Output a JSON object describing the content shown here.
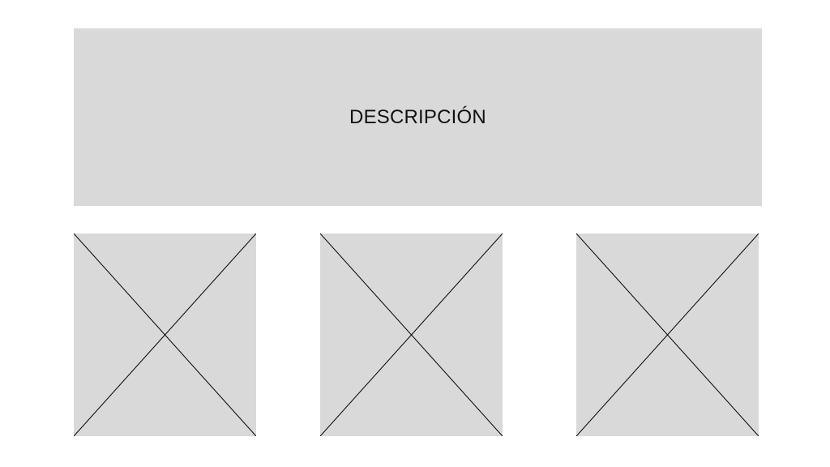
{
  "description": {
    "label": "DESCRIPCIÓN"
  },
  "colors": {
    "placeholder_fill": "#d9d9d9",
    "cross_stroke": "#000000",
    "background": "#ffffff"
  },
  "image_placeholders": [
    {
      "icon": "image-placeholder-icon"
    },
    {
      "icon": "image-placeholder-icon"
    },
    {
      "icon": "image-placeholder-icon"
    }
  ]
}
